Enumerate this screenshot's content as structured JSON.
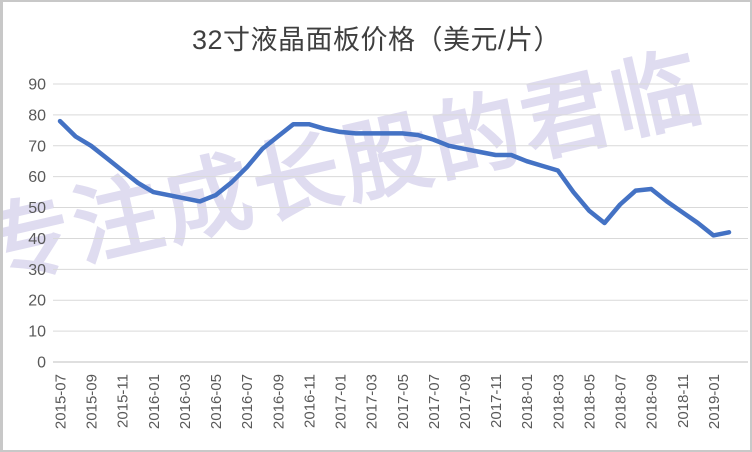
{
  "title": "32寸液晶面板价格（美元/片）",
  "watermark": {
    "text": "专注成长股的君临",
    "color": "rgba(131,119,197,0.26)"
  },
  "colors": {
    "line": "#4472C4",
    "gridline": "#d9d9d9",
    "axis_line": "#bfbfbf",
    "axis_label": "#595959",
    "title": "#3f3f3f",
    "frame_border": "#c8c8c8"
  },
  "chart_data": {
    "type": "line",
    "title": "32寸液晶面板价格（美元/片）",
    "xlabel": "",
    "ylabel": "",
    "ylim": [
      0,
      90
    ],
    "y_ticks": [
      0,
      10,
      20,
      30,
      40,
      50,
      60,
      70,
      80,
      90
    ],
    "grid": true,
    "legend": "none",
    "x_tick_labels": [
      "2015-07",
      "2015-09",
      "2015-11",
      "2016-01",
      "2016-03",
      "2016-05",
      "2016-07",
      "2016-09",
      "2016-11",
      "2017-01",
      "2017-03",
      "2017-05",
      "2017-07",
      "2017-09",
      "2017-11",
      "2018-01",
      "2018-03",
      "2018-05",
      "2018-07",
      "2018-09",
      "2018-11",
      "2019-01"
    ],
    "x": [
      "2015-07",
      "2015-08",
      "2015-09",
      "2015-10",
      "2015-11",
      "2015-12",
      "2016-01",
      "2016-02",
      "2016-03",
      "2016-04",
      "2016-05",
      "2016-06",
      "2016-07",
      "2016-08",
      "2016-09",
      "2016-10",
      "2016-11",
      "2016-12",
      "2017-01",
      "2017-02",
      "2017-03",
      "2017-04",
      "2017-05",
      "2017-06",
      "2017-07",
      "2017-08",
      "2017-09",
      "2017-10",
      "2017-11",
      "2017-12",
      "2018-01",
      "2018-02",
      "2018-03",
      "2018-04",
      "2018-05",
      "2018-06",
      "2018-07",
      "2018-08",
      "2018-09",
      "2018-10",
      "2018-11",
      "2018-12",
      "2019-01",
      "2019-02"
    ],
    "values": [
      78,
      73,
      70,
      66,
      62,
      58,
      55,
      54,
      53,
      52,
      54,
      58,
      63,
      69,
      73,
      77,
      77,
      75.5,
      74.5,
      74,
      74,
      74,
      74,
      73.5,
      72,
      70,
      69,
      68,
      67,
      67,
      65,
      63.5,
      62,
      55,
      49,
      45,
      51,
      55.5,
      56,
      52,
      48.5,
      45,
      41,
      42
    ]
  }
}
